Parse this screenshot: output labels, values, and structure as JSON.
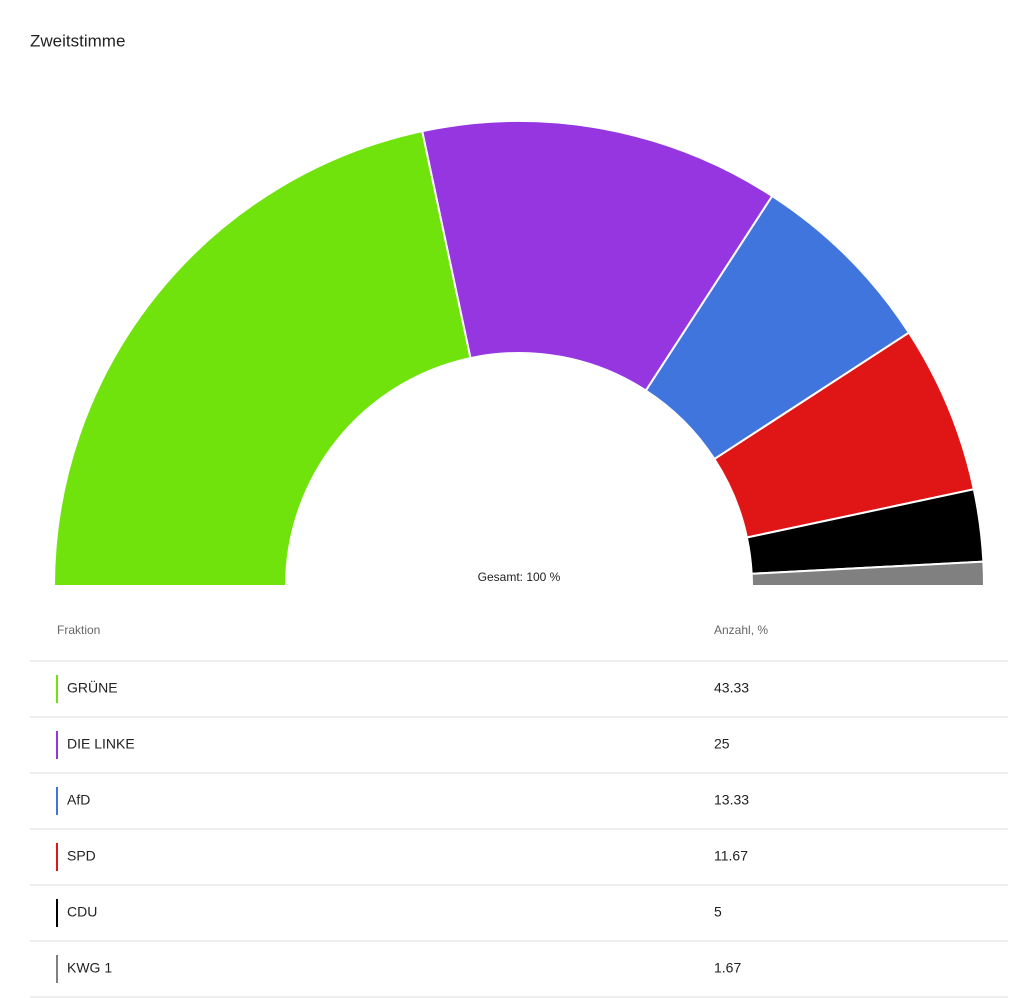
{
  "chart_data": {
    "type": "semi-donut",
    "title": "Zweitstimme",
    "center_label": "Gesamt: 100 %",
    "table_headers": [
      "Fraktion",
      "Anzahl, %"
    ],
    "categories": [
      "GRÜNE",
      "DIE LINKE",
      "AfD",
      "SPD",
      "CDU",
      "KWG 1"
    ],
    "values": [
      43.33,
      25,
      13.33,
      11.67,
      5,
      1.67
    ],
    "colors": [
      "#6fe30b",
      "#9536e0",
      "#4175de",
      "#e01515",
      "#000000",
      "#808080"
    ]
  }
}
